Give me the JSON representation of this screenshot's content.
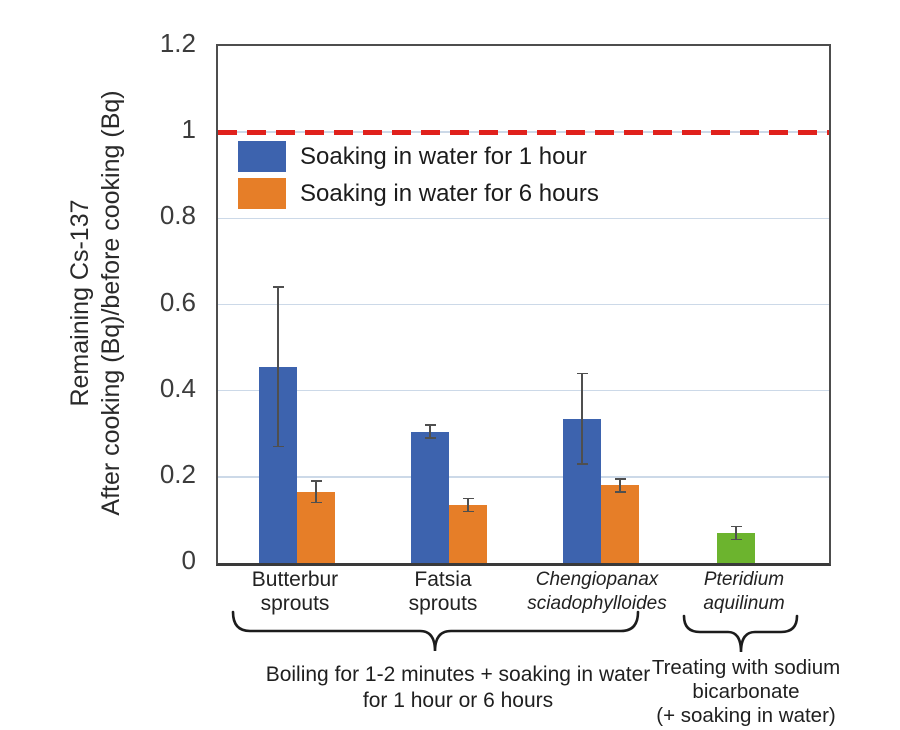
{
  "chart_data": {
    "type": "bar",
    "title": "",
    "ylabel_line1": "Remaining Cs-137",
    "ylabel_line2": "After cooking (Bq)/before cooking (Bq)",
    "ylim": [
      0,
      1.2
    ],
    "grid": true,
    "gridline_values": [
      0.2,
      0.4,
      0.6,
      0.8,
      1.0
    ],
    "yticks": [
      {
        "label": "1.2",
        "value": 1.2
      },
      {
        "label": "1",
        "value": 1.0
      },
      {
        "label": "0.8",
        "value": 0.8
      },
      {
        "label": "0.6",
        "value": 0.6
      },
      {
        "label": "0.4",
        "value": 0.4
      },
      {
        "label": "0.2",
        "value": 0.2
      },
      {
        "label": "0",
        "value": 0
      }
    ],
    "reference_line": {
      "value": 1.0,
      "color": "#e0211c",
      "style": "dashed"
    },
    "categories": [
      {
        "label_lines": [
          "Butterbur",
          "sprouts"
        ],
        "italic": false
      },
      {
        "label_lines": [
          "Fatsia",
          "sprouts"
        ],
        "italic": false
      },
      {
        "label_lines": [
          "Chengiopanax",
          "sciadophylloides"
        ],
        "italic": true
      },
      {
        "label_lines": [
          "Pteridium",
          "aquilinum"
        ],
        "italic": true
      }
    ],
    "series": [
      {
        "name": "Soaking in water for 1 hour",
        "color": "#3d63ae",
        "values": [
          0.455,
          0.305,
          0.335,
          null
        ],
        "errors": [
          0.185,
          0.015,
          0.105,
          null
        ]
      },
      {
        "name": "Soaking in water for 6 hours",
        "color": "#e67e28",
        "values": [
          0.165,
          0.135,
          0.18,
          null
        ],
        "errors": [
          0.025,
          0.015,
          0.015,
          null
        ]
      },
      {
        "name": "Treating with sodium bicarbonate",
        "color": "#6cb42e",
        "values": [
          null,
          null,
          null,
          0.07
        ],
        "errors": [
          null,
          null,
          null,
          0.015
        ]
      }
    ],
    "legend_position": "upper-left-inside",
    "legend": [
      {
        "label": "Soaking in water for 1 hour",
        "color": "#3d63ae"
      },
      {
        "label": "Soaking in water for 6 hours",
        "color": "#e67e28"
      }
    ],
    "annotations": {
      "group_brace_label_lines": [
        "Boiling for 1-2 minutes + soaking in water",
        "for 1 hour or 6 hours"
      ],
      "single_brace_label_lines": [
        "Treating with sodium",
        "bicarbonate",
        "(+ soaking in water)"
      ]
    },
    "colors": {
      "gridline": "#ccd9e8",
      "axis_border": "#4d4d4d",
      "error_bar": "#4f4f4f",
      "text": "#1f1f1f"
    }
  }
}
